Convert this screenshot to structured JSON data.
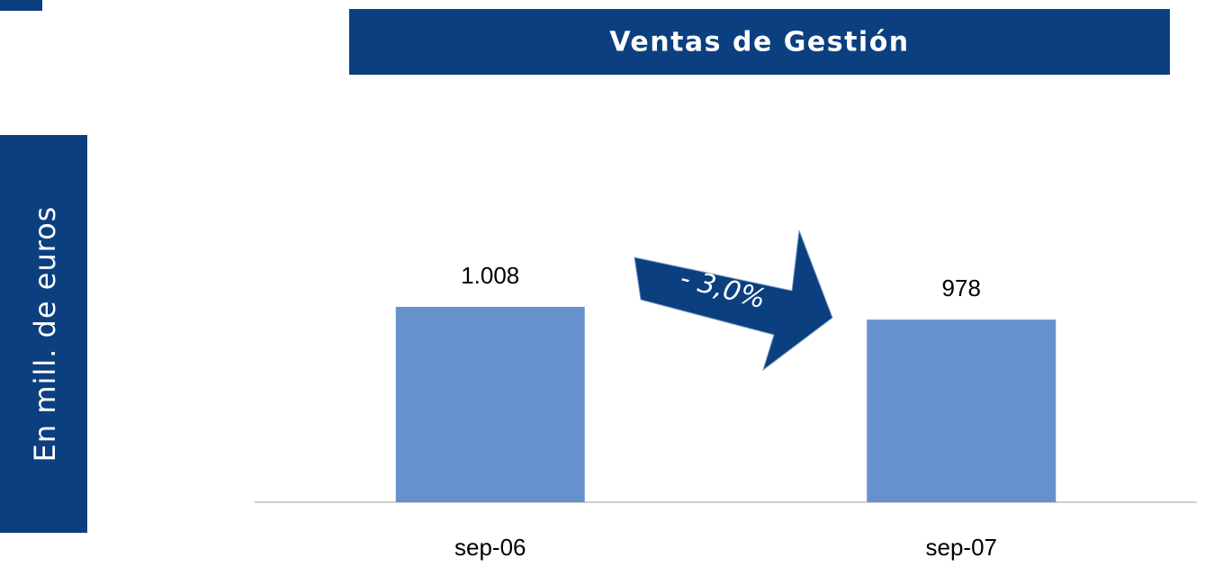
{
  "chart_data": {
    "type": "bar",
    "title": "Ventas de Gestión",
    "y_label": "En mill. de euros",
    "categories": [
      "sep-06",
      "sep-07"
    ],
    "values": [
      1008,
      978
    ],
    "value_labels": [
      "1.008",
      "978"
    ],
    "color": "#6592cd",
    "ylim": [
      550,
      1050
    ],
    "annotation": "- 3,0%"
  }
}
